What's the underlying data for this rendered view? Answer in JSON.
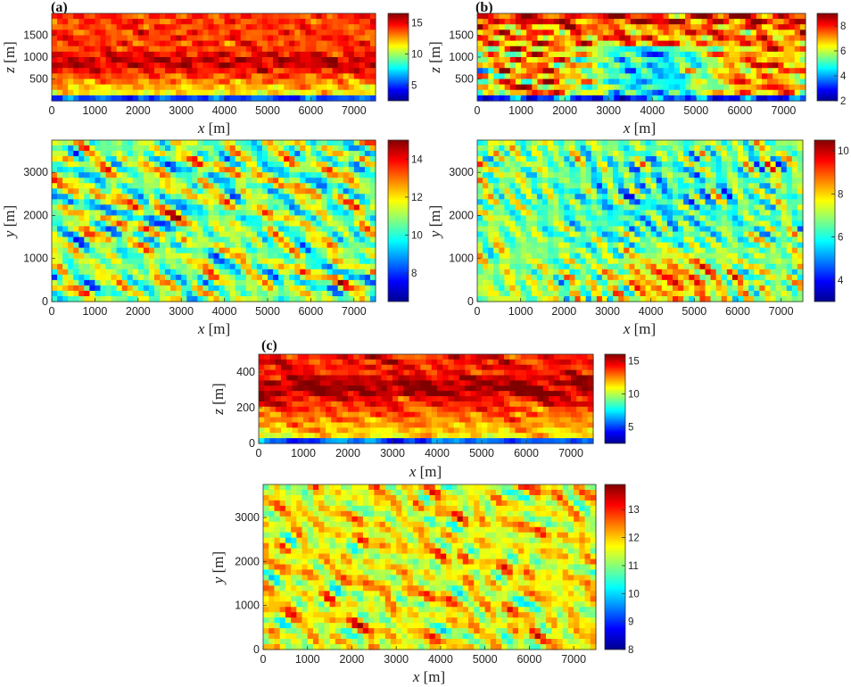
{
  "panel_labels": [
    "(a)",
    "(b)",
    "(c)"
  ],
  "colors": {
    "jet": [
      "#00008f",
      "#0000ff",
      "#0080ff",
      "#00ffff",
      "#80ff80",
      "#ffff00",
      "#ff8000",
      "#ff0000",
      "#800000"
    ]
  },
  "chart_data": [
    {
      "panel": "(a)",
      "type": "heatmap",
      "xlabel_var": "x",
      "xlabel_unit": "[m]",
      "ylabel_var": "z",
      "ylabel_unit": "[m]",
      "xlim": [
        0,
        7500
      ],
      "ylim": [
        0,
        2000
      ],
      "xticks": [
        "0",
        "1000",
        "2000",
        "3000",
        "4000",
        "5000",
        "6000",
        "7000"
      ],
      "yticks": [
        "500",
        "1000",
        "1500"
      ],
      "colorbar": {
        "min": 2.5,
        "max": 16.5,
        "ticks": [
          "5",
          "10",
          "15"
        ]
      }
    },
    {
      "panel": "(a)",
      "type": "heatmap",
      "xlabel_var": "x",
      "xlabel_unit": "[m]",
      "ylabel_var": "y",
      "ylabel_unit": "[m]",
      "xlim": [
        0,
        7500
      ],
      "ylim": [
        0,
        3750
      ],
      "xticks": [
        "0",
        "1000",
        "2000",
        "3000",
        "4000",
        "5000",
        "6000",
        "7000"
      ],
      "yticks": [
        "0",
        "1000",
        "2000",
        "3000"
      ],
      "colorbar": {
        "min": 6.5,
        "max": 15,
        "ticks": [
          "8",
          "10",
          "12",
          "14"
        ]
      }
    },
    {
      "panel": "(b)",
      "type": "heatmap",
      "xlabel_var": "x",
      "xlabel_unit": "[m]",
      "ylabel_var": "z",
      "ylabel_unit": "[m]",
      "xlim": [
        0,
        7500
      ],
      "ylim": [
        0,
        2000
      ],
      "xticks": [
        "0",
        "1000",
        "2000",
        "3000",
        "4000",
        "5000",
        "6000",
        "7000"
      ],
      "yticks": [
        "500",
        "1000",
        "1500"
      ],
      "colorbar": {
        "min": 2,
        "max": 9,
        "ticks": [
          "2",
          "4",
          "6",
          "8"
        ]
      }
    },
    {
      "panel": "(b)",
      "type": "heatmap",
      "xlabel_var": "x",
      "xlabel_unit": "[m]",
      "ylabel_var": "y",
      "ylabel_unit": "[m]",
      "xlim": [
        0,
        7500
      ],
      "ylim": [
        0,
        3750
      ],
      "xticks": [
        "0",
        "1000",
        "2000",
        "3000",
        "4000",
        "5000",
        "6000",
        "7000"
      ],
      "yticks": [
        "0",
        "1000",
        "2000",
        "3000"
      ],
      "colorbar": {
        "min": 3,
        "max": 10.5,
        "ticks": [
          "4",
          "6",
          "8",
          "10"
        ]
      }
    },
    {
      "panel": "(c)",
      "type": "heatmap",
      "xlabel_var": "x",
      "xlabel_unit": "[m]",
      "ylabel_var": "z",
      "ylabel_unit": "[m]",
      "xlim": [
        0,
        7500
      ],
      "ylim": [
        0,
        500
      ],
      "xticks": [
        "0",
        "1000",
        "2000",
        "3000",
        "4000",
        "5000",
        "6000",
        "7000"
      ],
      "yticks": [
        "0",
        "200",
        "400"
      ],
      "colorbar": {
        "min": 2.5,
        "max": 16,
        "ticks": [
          "5",
          "10",
          "15"
        ]
      }
    },
    {
      "panel": "(c)",
      "type": "heatmap",
      "xlabel_var": "x",
      "xlabel_unit": "[m]",
      "ylabel_var": "y",
      "ylabel_unit": "[m]",
      "xlim": [
        0,
        7500
      ],
      "ylim": [
        0,
        3750
      ],
      "xticks": [
        "0",
        "1000",
        "2000",
        "3000",
        "4000",
        "5000",
        "6000",
        "7000"
      ],
      "yticks": [
        "0",
        "1000",
        "2000",
        "3000"
      ],
      "colorbar": {
        "min": 8,
        "max": 13.9,
        "ticks": [
          "8",
          "9",
          "10",
          "11",
          "12",
          "13"
        ]
      }
    }
  ]
}
